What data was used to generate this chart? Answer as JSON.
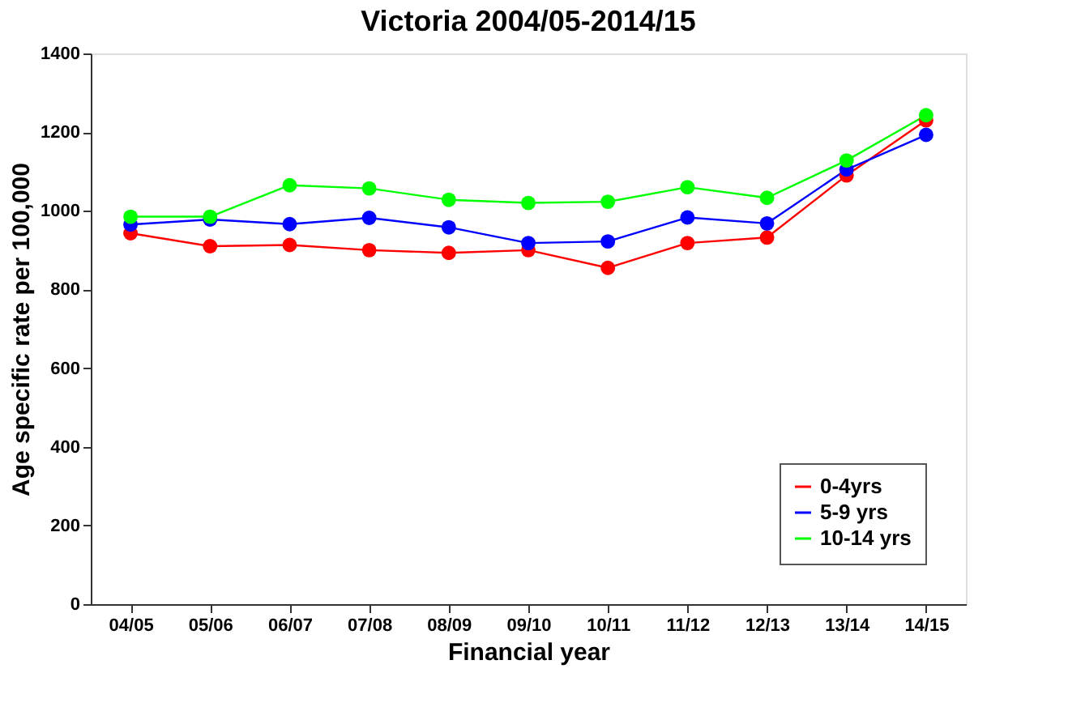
{
  "chart_data": {
    "type": "line",
    "title": "Victoria 2004/05-2014/15",
    "xlabel": "Financial year",
    "ylabel": "Age specific rate per 100,000",
    "categories": [
      "04/05",
      "05/06",
      "06/07",
      "07/08",
      "08/09",
      "09/10",
      "10/11",
      "11/12",
      "12/13",
      "13/14",
      "14/15"
    ],
    "series": [
      {
        "name": "0-4yrs",
        "color": "#ff0000",
        "values": [
          943,
          910,
          913,
          900,
          893,
          900,
          855,
          918,
          932,
          1090,
          1230
        ]
      },
      {
        "name": "5-9 yrs",
        "color": "#0000ff",
        "values": [
          965,
          978,
          966,
          982,
          958,
          918,
          922,
          983,
          968,
          1105,
          1193
        ]
      },
      {
        "name": "10-14 yrs",
        "color": "#00ff00",
        "values": [
          985,
          985,
          1065,
          1057,
          1028,
          1020,
          1023,
          1060,
          1033,
          1128,
          1243
        ]
      }
    ],
    "ylim": [
      0,
      1400
    ],
    "yticks": [
      0,
      200,
      400,
      600,
      800,
      1000,
      1200,
      1400
    ],
    "grid": false,
    "legend": "bottom right",
    "marker": "circle",
    "line_style": "solid"
  }
}
